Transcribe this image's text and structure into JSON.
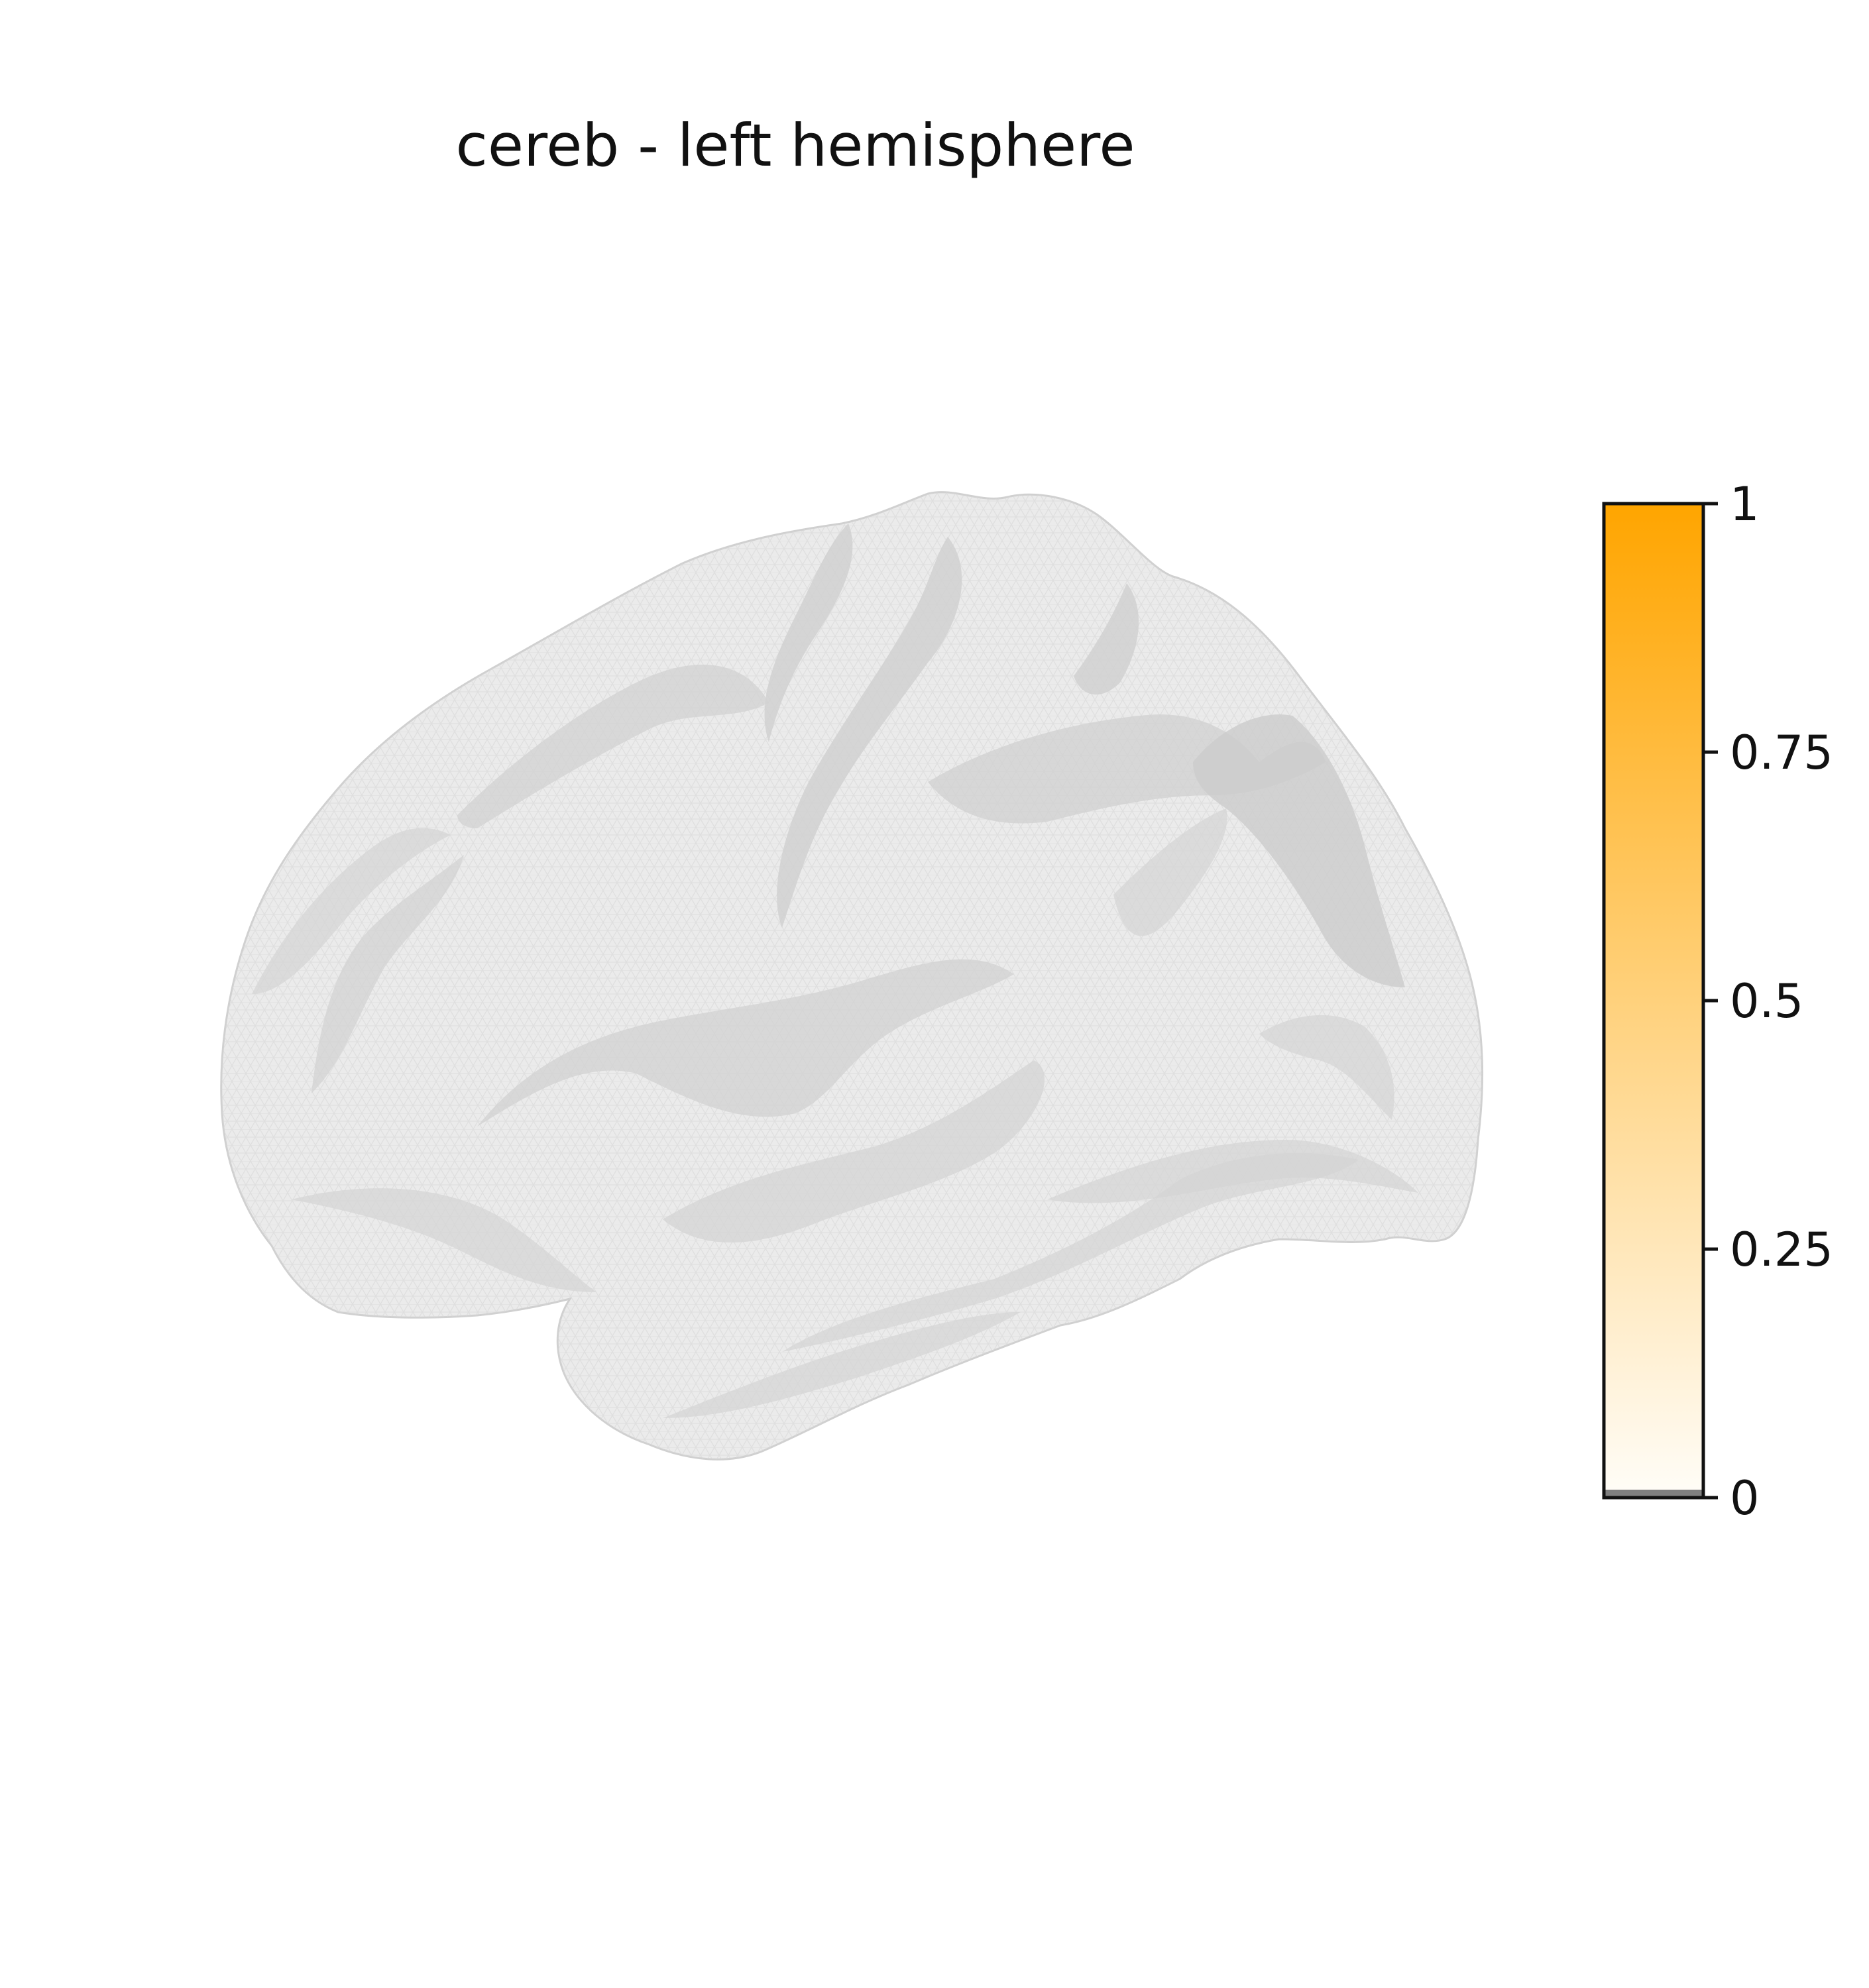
{
  "title": "cereb - left hemisphere",
  "colorbar": {
    "min": 0,
    "max": 1,
    "ticks": [
      {
        "value": 0,
        "label": "0"
      },
      {
        "value": 0.25,
        "label": "0.25"
      },
      {
        "value": 0.5,
        "label": "0.5"
      },
      {
        "value": 0.75,
        "label": "0.75"
      },
      {
        "value": 1,
        "label": "1"
      }
    ],
    "color_low": "#fffdf8",
    "color_high": "#ffa500",
    "below_min_color": "#7f7f7f"
  },
  "surface": {
    "base_color": "#ebebeb",
    "sulcus_color": "#cfcfcf",
    "mesh_color": "#d2d2d2"
  }
}
